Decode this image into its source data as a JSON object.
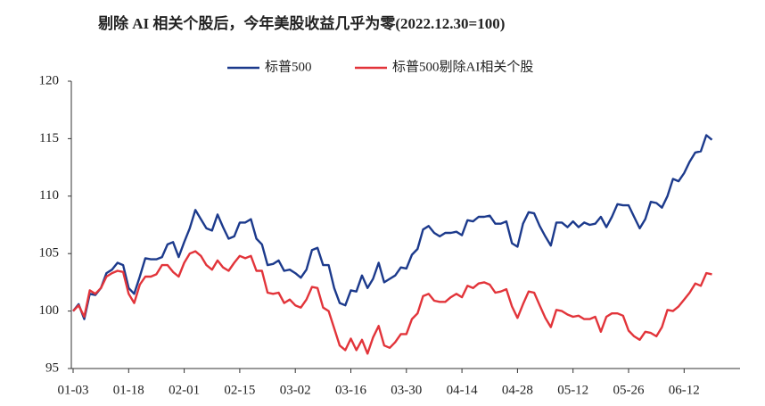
{
  "chart_data": {
    "type": "line",
    "title": "剔除 AI 相关个股后，今年美股收益几乎为零(2022.12.30=100)",
    "categories": [
      "01-03",
      null,
      null,
      null,
      null,
      null,
      null,
      null,
      null,
      null,
      "01-18",
      null,
      null,
      null,
      null,
      null,
      null,
      null,
      null,
      null,
      "02-01",
      null,
      null,
      null,
      null,
      null,
      null,
      null,
      null,
      null,
      "02-15",
      null,
      null,
      null,
      null,
      null,
      null,
      null,
      null,
      null,
      "03-02",
      null,
      null,
      null,
      null,
      null,
      null,
      null,
      null,
      null,
      "03-16",
      null,
      null,
      null,
      null,
      null,
      null,
      null,
      null,
      null,
      "03-30",
      null,
      null,
      null,
      null,
      null,
      null,
      null,
      null,
      null,
      "04-14",
      null,
      null,
      null,
      null,
      null,
      null,
      null,
      null,
      null,
      "04-28",
      null,
      null,
      null,
      null,
      null,
      null,
      null,
      null,
      null,
      "05-12",
      null,
      null,
      null,
      null,
      null,
      null,
      null,
      null,
      null,
      "05-26",
      null,
      null,
      null,
      null,
      null,
      null,
      null,
      null,
      null,
      "06-12",
      null,
      null,
      null,
      null,
      null
    ],
    "series": [
      {
        "name": "标普500",
        "color": "#1c3a8c",
        "values": [
          100.0,
          100.6,
          99.3,
          101.5,
          101.4,
          102.0,
          103.3,
          103.6,
          104.2,
          104.0,
          102.0,
          101.5,
          103.0,
          104.6,
          104.5,
          104.5,
          104.7,
          105.8,
          106.0,
          104.7,
          106.0,
          107.2,
          108.8,
          108.0,
          107.2,
          107.0,
          108.4,
          107.3,
          106.3,
          106.5,
          107.7,
          107.7,
          108.0,
          106.3,
          105.8,
          104.0,
          104.1,
          104.4,
          103.5,
          103.6,
          103.3,
          102.9,
          103.6,
          105.3,
          105.5,
          104.0,
          104.0,
          102.0,
          100.7,
          100.5,
          101.8,
          101.7,
          103.1,
          102.0,
          102.8,
          104.2,
          102.5,
          102.8,
          103.1,
          103.8,
          103.7,
          104.9,
          105.4,
          107.1,
          107.4,
          106.8,
          106.5,
          106.8,
          106.8,
          106.9,
          106.6,
          107.9,
          107.8,
          108.2,
          108.2,
          108.3,
          107.6,
          107.6,
          107.8,
          105.9,
          105.6,
          107.6,
          108.6,
          108.5,
          107.4,
          106.5,
          105.7,
          107.7,
          107.7,
          107.3,
          107.8,
          107.3,
          107.7,
          107.5,
          107.6,
          108.2,
          107.3,
          108.2,
          109.3,
          109.2,
          109.2,
          108.2,
          107.2,
          108.0,
          109.5,
          109.4,
          109.0,
          110.0,
          111.5,
          111.3,
          112.0,
          113.0,
          113.8,
          113.9,
          115.3,
          114.9
        ]
      },
      {
        "name": "标普500剔除AI相关个股",
        "color": "#e2343a",
        "values": [
          100,
          100.5,
          99.5,
          101.8,
          101.5,
          102,
          103,
          103.3,
          103.5,
          103.4,
          101.5,
          100.7,
          102.3,
          103,
          103,
          103.2,
          104,
          104,
          103.4,
          103,
          104.2,
          105,
          105.2,
          104.8,
          104,
          103.6,
          104.4,
          103.8,
          103.5,
          104.2,
          104.8,
          104.6,
          104.8,
          103.5,
          103.5,
          101.6,
          101.5,
          101.6,
          100.7,
          101,
          100.5,
          100.3,
          101,
          102.1,
          102,
          100.3,
          100,
          98.5,
          97,
          96.6,
          97.6,
          96.6,
          97.5,
          96.3,
          97.7,
          98.7,
          97,
          96.8,
          97.3,
          98,
          98,
          99.3,
          99.8,
          101.3,
          101.5,
          100.9,
          100.8,
          100.8,
          101.2,
          101.5,
          101.2,
          102.2,
          102,
          102.4,
          102.5,
          102.3,
          101.6,
          101.7,
          101.9,
          100.4,
          99.4,
          100.6,
          101.7,
          101.6,
          100.5,
          99.4,
          98.6,
          100.1,
          100,
          99.7,
          99.5,
          99.6,
          99.3,
          99.3,
          99.5,
          98.2,
          99.5,
          99.8,
          99.8,
          99.6,
          98.3,
          97.8,
          97.5,
          98.2,
          98.1,
          97.8,
          98.6,
          100.1,
          100,
          100.4,
          101.0,
          101.6,
          102.4,
          102.2,
          103.3,
          103.2
        ]
      }
    ],
    "ylim": [
      95,
      120
    ],
    "yticks": [
      95,
      100,
      105,
      110,
      115,
      120
    ],
    "grid": false,
    "legend": "top"
  }
}
